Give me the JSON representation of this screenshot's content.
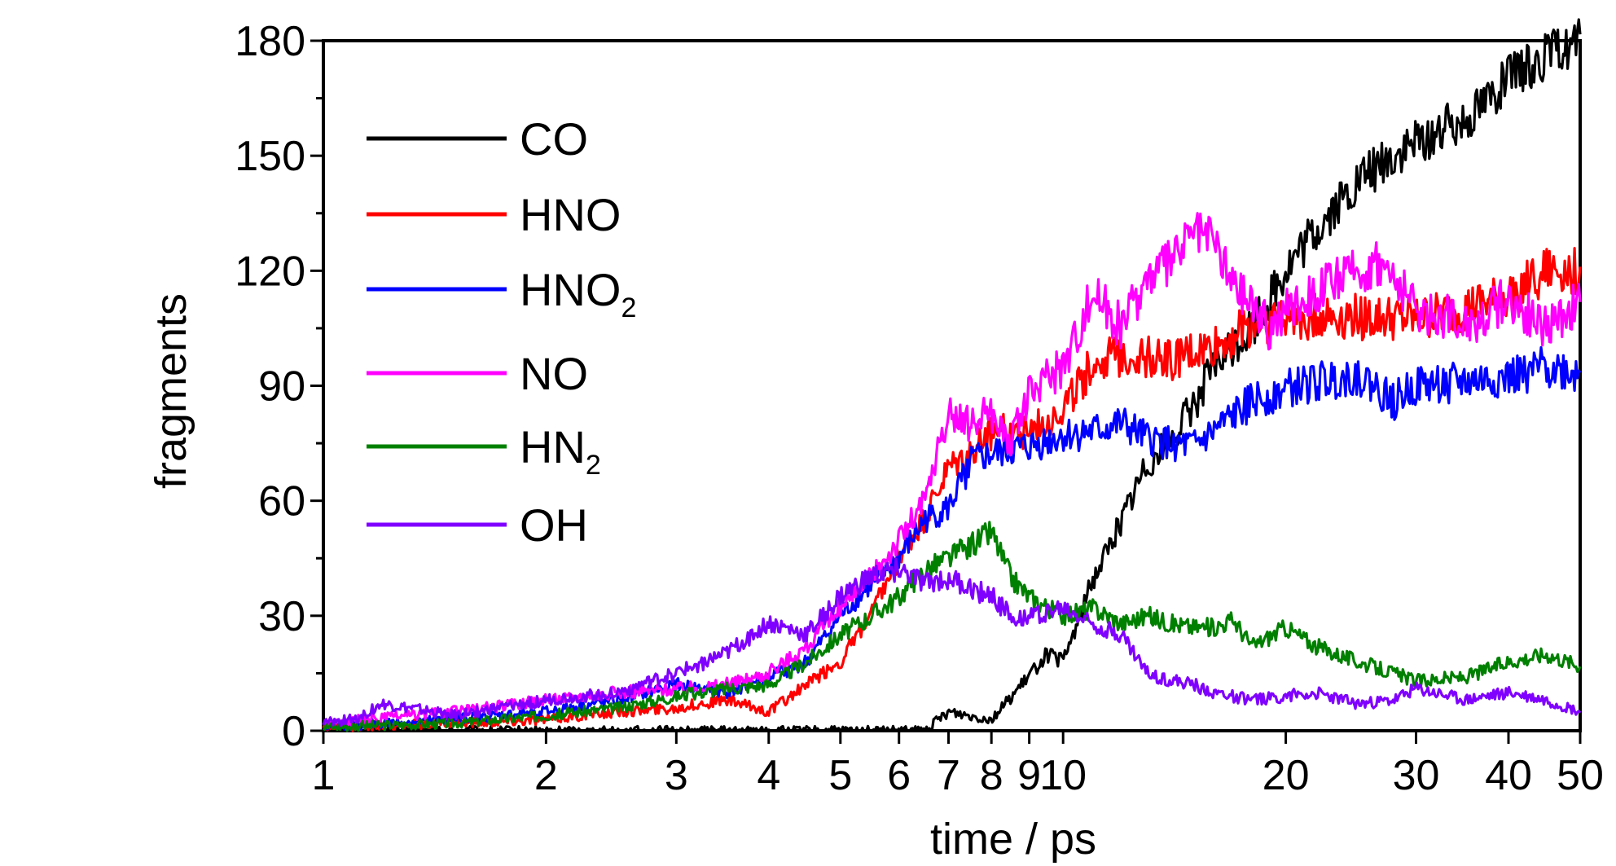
{
  "chart_data": {
    "type": "line",
    "xlabel": "time / ps",
    "ylabel": "fragments",
    "xscale": "log",
    "xlim": [
      1,
      50
    ],
    "ylim": [
      0,
      180
    ],
    "xticks": [
      1,
      2,
      3,
      4,
      5,
      6,
      7,
      8,
      9,
      10,
      20,
      30,
      40,
      50
    ],
    "xtick_labels": [
      "1",
      "2",
      "3",
      "4",
      "5",
      "6",
      "7",
      "8",
      "9",
      "10",
      "20",
      "30",
      "40",
      "50"
    ],
    "yticks": [
      0,
      30,
      60,
      90,
      120,
      150,
      180
    ],
    "ytick_labels": [
      "0",
      "30",
      "60",
      "90",
      "120",
      "150",
      "180"
    ],
    "grid": false,
    "legend_position": "top-left",
    "series": [
      {
        "name": "CO",
        "label_main": "CO",
        "label_sub": "",
        "color": "#000000",
        "x": [
          1,
          4,
          4.7,
          6.5,
          7,
          8,
          8.8,
          9.5,
          10,
          11,
          12,
          13,
          14,
          15,
          16,
          18,
          20,
          23,
          26,
          30,
          35,
          40,
          45,
          50
        ],
        "y": [
          0,
          0,
          0,
          0,
          5,
          3,
          12,
          20,
          18,
          40,
          55,
          70,
          76,
          85,
          95,
          105,
          120,
          135,
          146,
          153,
          160,
          170,
          176,
          180
        ]
      },
      {
        "name": "HNO",
        "label_main": "HNO",
        "label_sub": "",
        "color": "#ff0000",
        "x": [
          1,
          1.5,
          2,
          2.5,
          3,
          3.5,
          4,
          4.5,
          5,
          5.5,
          6,
          6.5,
          7,
          7.5,
          8,
          9,
          10,
          11,
          12,
          14,
          16,
          18,
          20,
          25,
          30,
          35,
          40,
          45,
          50
        ],
        "y": [
          1,
          2,
          3,
          5,
          6,
          8,
          5,
          12,
          18,
          30,
          45,
          55,
          68,
          72,
          78,
          78,
          84,
          96,
          98,
          97,
          100,
          106,
          108,
          108,
          107,
          110,
          113,
          120,
          120
        ]
      },
      {
        "name": "HNO₂",
        "label_main": "HNO",
        "label_sub": "2",
        "color": "#0000ff",
        "x": [
          1,
          1.5,
          2,
          2.5,
          3,
          3.5,
          4,
          4.5,
          5,
          5.5,
          6,
          6.5,
          7,
          7.5,
          8,
          9,
          10,
          11,
          12,
          13,
          14,
          15,
          16,
          18,
          20,
          25,
          28,
          30,
          35,
          40,
          45,
          50
        ],
        "y": [
          1,
          3,
          5,
          8,
          12,
          10,
          14,
          18,
          30,
          38,
          45,
          55,
          58,
          70,
          72,
          74,
          77,
          78,
          80,
          76,
          75,
          74,
          78,
          86,
          89,
          93,
          86,
          90,
          91,
          92,
          95,
          93
        ]
      },
      {
        "name": "NO",
        "label_main": "NO",
        "label_sub": "",
        "color": "#ff00ff",
        "x": [
          1,
          1.5,
          2,
          2.5,
          3,
          3.5,
          4,
          4.5,
          5,
          5.5,
          6,
          6.5,
          7,
          7.5,
          8,
          8.5,
          9,
          10,
          11,
          12,
          13,
          14,
          15,
          16,
          17,
          18,
          19,
          20,
          22,
          25,
          27,
          30,
          33,
          36,
          40,
          45,
          50
        ],
        "y": [
          2,
          5,
          8,
          10,
          11,
          12,
          15,
          22,
          32,
          40,
          50,
          60,
          82,
          80,
          83,
          75,
          88,
          95,
          115,
          105,
          118,
          122,
          130,
          128,
          116,
          112,
          105,
          110,
          115,
          120,
          122,
          110,
          108,
          107,
          113,
          105,
          112
        ]
      },
      {
        "name": "HN₂",
        "label_main": "HN",
        "label_sub": "2",
        "color": "#008000",
        "x": [
          1,
          1.5,
          2,
          2.5,
          3,
          3.5,
          4,
          4.5,
          5,
          5.5,
          6,
          6.5,
          7,
          7.5,
          8,
          8.5,
          9,
          10,
          11,
          12,
          13,
          14,
          15,
          16,
          17,
          18,
          20,
          22,
          25,
          28,
          30,
          35,
          40,
          45,
          50
        ],
        "y": [
          1,
          2,
          4,
          6,
          9,
          11,
          12,
          18,
          25,
          30,
          35,
          42,
          45,
          48,
          52,
          40,
          35,
          30,
          32,
          28,
          30,
          28,
          27,
          27,
          29,
          22,
          27,
          22,
          18,
          15,
          13,
          14,
          18,
          20,
          17
        ]
      },
      {
        "name": "OH",
        "label_main": "OH",
        "label_sub": "",
        "color": "#8000ff",
        "x": [
          1,
          1.1,
          1.2,
          1.5,
          2,
          2.5,
          3,
          3.5,
          4,
          4.5,
          5,
          5.5,
          6,
          6.5,
          7,
          7.5,
          8,
          8.5,
          9,
          10,
          11,
          12,
          13,
          14,
          15,
          16,
          18,
          20,
          22,
          25,
          28,
          30,
          35,
          40,
          45,
          50
        ],
        "y": [
          2,
          3,
          7,
          4,
          8,
          10,
          15,
          20,
          28,
          25,
          35,
          40,
          42,
          38,
          40,
          37,
          35,
          30,
          30,
          32,
          28,
          25,
          15,
          13,
          12,
          10,
          8,
          9,
          10,
          7,
          8,
          11,
          8,
          10,
          8,
          5
        ]
      }
    ]
  }
}
